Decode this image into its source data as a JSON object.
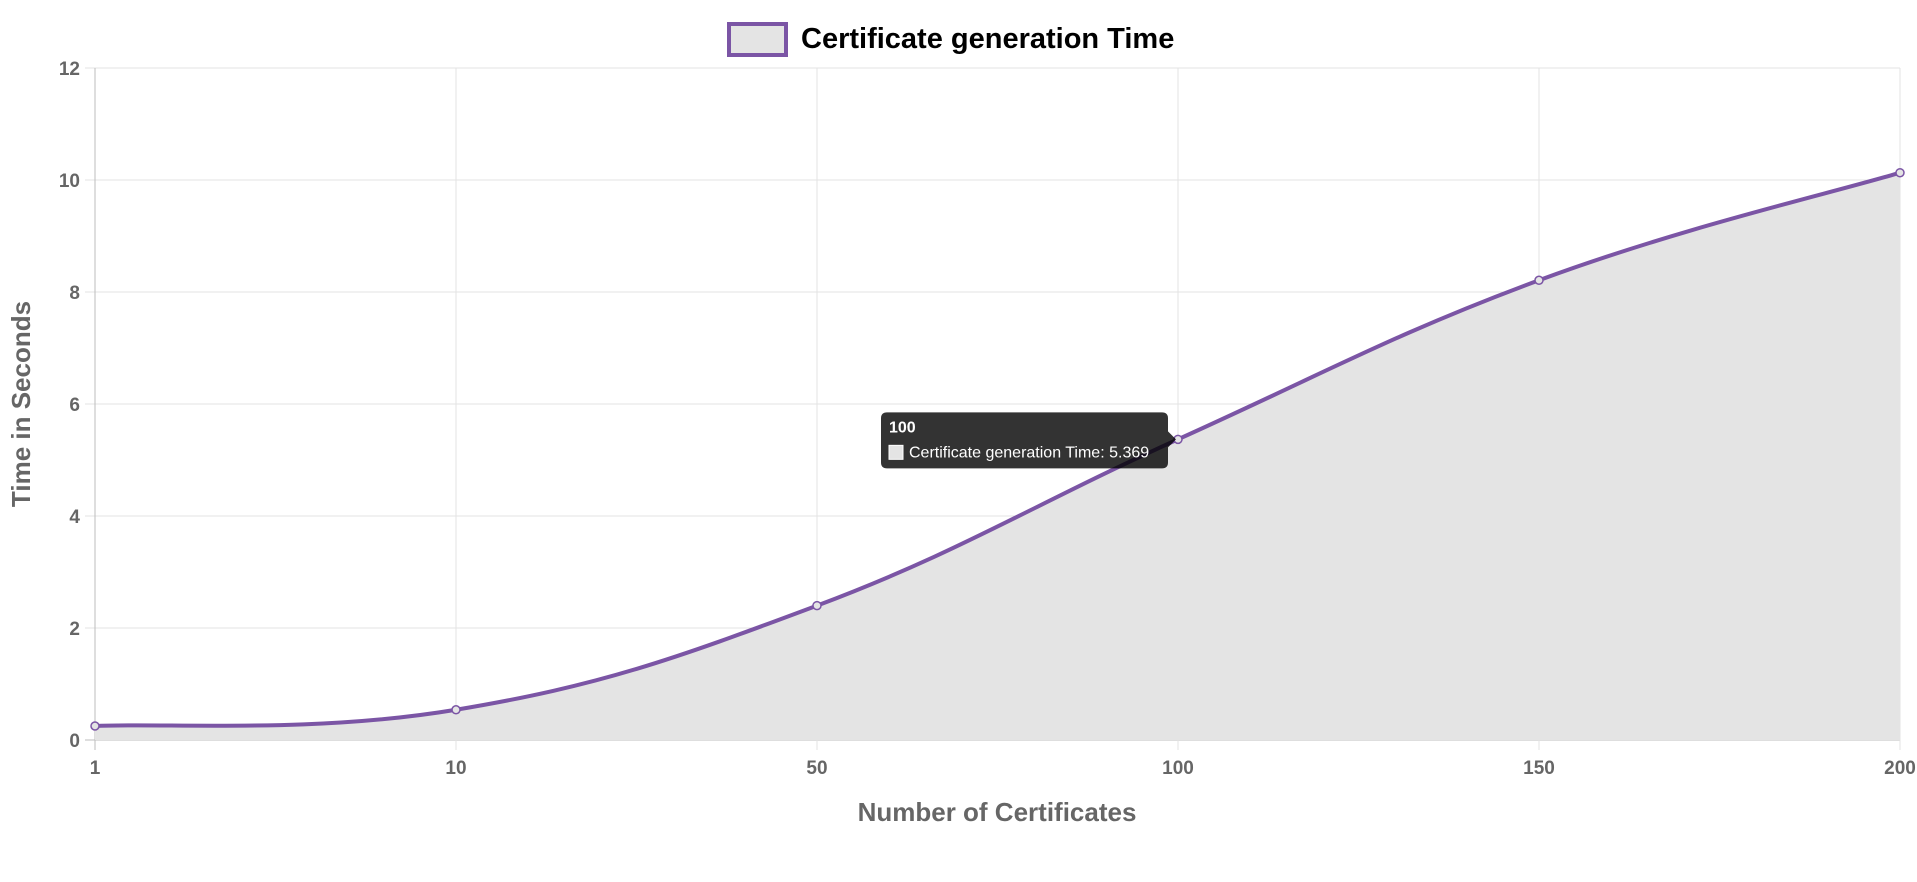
{
  "chart_data": {
    "type": "line",
    "categories": [
      "1",
      "10",
      "50",
      "100",
      "150",
      "200"
    ],
    "series": [
      {
        "name": "Certificate generation Time",
        "values": [
          0.25,
          0.54,
          2.4,
          5.369,
          8.21,
          10.13
        ]
      }
    ],
    "xlabel": "Number of Certificates",
    "ylabel": "Time in Seconds",
    "ylim": [
      0,
      12
    ],
    "yticks": [
      "0",
      "2",
      "4",
      "6",
      "8",
      "10",
      "12"
    ],
    "grid": true,
    "legend": "top-center",
    "fill": true,
    "colors": {
      "line": "#7b55a5",
      "fill": "#e4e4e4",
      "grid": "#e3e3e3",
      "axis": "#666666"
    },
    "tooltip": {
      "title": "100",
      "label": "Certificate generation Time: 5.369",
      "category_index": 3
    }
  }
}
